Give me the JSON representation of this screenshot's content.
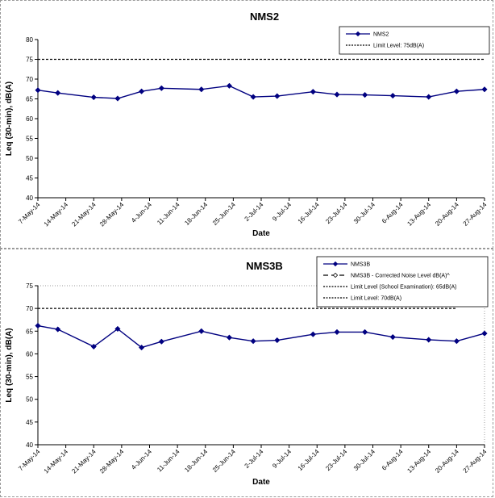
{
  "chart_data": [
    {
      "type": "line",
      "title": "NMS2",
      "xlabel": "Date",
      "ylabel": "Leq (30-min), dB(A)",
      "ylim": [
        40,
        80
      ],
      "yticks": [
        "40",
        "45",
        "50",
        "55",
        "60",
        "65",
        "70",
        "75",
        "80"
      ],
      "grid": false,
      "legend_position": "top-right",
      "x_tick_labels": [
        "7-May-14",
        "14-May-14",
        "21-May-14",
        "28-May-14",
        "4-Jun-14",
        "11-Jun-14",
        "18-Jun-14",
        "25-Jun-14",
        "2-Jul-14",
        "9-Jul-14",
        "16-Jul-14",
        "23-Jul-14",
        "30-Jul-14",
        "6-Aug-14",
        "13-Aug-14",
        "20-Aug-14",
        "27-Aug-14"
      ],
      "series": [
        {
          "name": "NMS2",
          "style": "solid-diamond",
          "color": "#000080",
          "points": [
            {
              "x": "2014-05-07",
              "y": 67.2
            },
            {
              "x": "2014-05-12",
              "y": 66.5
            },
            {
              "x": "2014-05-21",
              "y": 65.4
            },
            {
              "x": "2014-05-27",
              "y": 65.1
            },
            {
              "x": "2014-06-02",
              "y": 66.9
            },
            {
              "x": "2014-06-07",
              "y": 67.7
            },
            {
              "x": "2014-06-17",
              "y": 67.4
            },
            {
              "x": "2014-06-24",
              "y": 68.3
            },
            {
              "x": "2014-06-30",
              "y": 65.5
            },
            {
              "x": "2014-07-06",
              "y": 65.7
            },
            {
              "x": "2014-07-15",
              "y": 66.8
            },
            {
              "x": "2014-07-21",
              "y": 66.1
            },
            {
              "x": "2014-07-28",
              "y": 66.0
            },
            {
              "x": "2014-08-04",
              "y": 65.8
            },
            {
              "x": "2014-08-13",
              "y": 65.5
            },
            {
              "x": "2014-08-20",
              "y": 66.9
            },
            {
              "x": "2014-08-27",
              "y": 67.4
            }
          ]
        },
        {
          "name": "Limit Level: 75dB(A)",
          "style": "dashed",
          "color": "#000000",
          "points": [
            {
              "x": "2014-05-07",
              "y": 75
            },
            {
              "x": "2014-08-27",
              "y": 75
            }
          ]
        }
      ]
    },
    {
      "type": "line",
      "title": "NMS3B",
      "xlabel": "Date",
      "ylabel": "Leq (30-min), dB(A)",
      "ylim": [
        40,
        75
      ],
      "yticks": [
        "40",
        "45",
        "50",
        "55",
        "60",
        "65",
        "70",
        "75"
      ],
      "grid": false,
      "legend_position": "top-right",
      "x_tick_labels": [
        "7-May-14",
        "14-May-14",
        "21-May-14",
        "28-May-14",
        "4-Jun-14",
        "11-Jun-14",
        "18-Jun-14",
        "25-Jun-14",
        "2-Jul-14",
        "9-Jul-14",
        "16-Jul-14",
        "23-Jul-14",
        "30-Jul-14",
        "6-Aug-14",
        "13-Aug-14",
        "20-Aug-14",
        "27-Aug-14"
      ],
      "series": [
        {
          "name": "NMS3B",
          "style": "solid-diamond",
          "color": "#000080",
          "points": [
            {
              "x": "2014-05-07",
              "y": 66.2
            },
            {
              "x": "2014-05-12",
              "y": 65.4
            },
            {
              "x": "2014-05-21",
              "y": 61.6
            },
            {
              "x": "2014-05-27",
              "y": 65.5
            },
            {
              "x": "2014-06-02",
              "y": 61.4
            },
            {
              "x": "2014-06-07",
              "y": 62.7
            },
            {
              "x": "2014-06-17",
              "y": 65.0
            },
            {
              "x": "2014-06-24",
              "y": 63.6
            },
            {
              "x": "2014-06-30",
              "y": 62.8
            },
            {
              "x": "2014-07-06",
              "y": 63.0
            },
            {
              "x": "2014-07-15",
              "y": 64.3
            },
            {
              "x": "2014-07-21",
              "y": 64.8
            },
            {
              "x": "2014-07-28",
              "y": 64.8
            },
            {
              "x": "2014-08-04",
              "y": 63.7
            },
            {
              "x": "2014-08-13",
              "y": 63.1
            },
            {
              "x": "2014-08-20",
              "y": 62.8
            },
            {
              "x": "2014-08-27",
              "y": 64.5
            }
          ]
        },
        {
          "name": "NMS3B  - Corrected Noise Level dB(A)^",
          "style": "long-dash-diamond",
          "color": "#000000",
          "points": []
        },
        {
          "name": "Limit Level (School Examination): 65dB(A)",
          "style": "dashed",
          "color": "#000000",
          "points": []
        },
        {
          "name": "Limit Level: 70dB(A)",
          "style": "dashed",
          "color": "#000000",
          "points": [
            {
              "x": "2014-05-07",
              "y": 70
            },
            {
              "x": "2014-08-20",
              "y": 70
            }
          ]
        }
      ]
    }
  ]
}
